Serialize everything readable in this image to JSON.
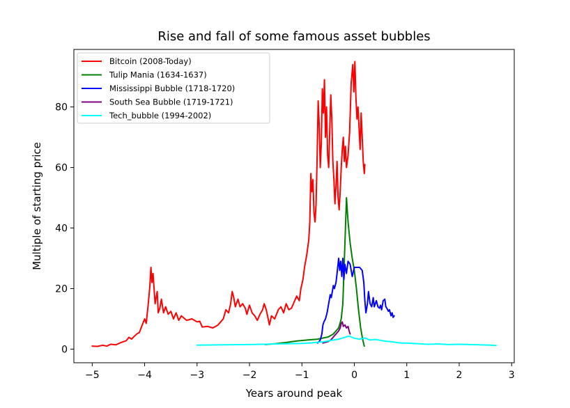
{
  "chart_data": {
    "type": "line",
    "title": "Rise and fall of some famous asset bubbles",
    "xlabel": "Years around peak",
    "ylabel": "Multiple of starting price",
    "xlim": [
      -5.35,
      3.05
    ],
    "ylim": [
      -4.5,
      99
    ],
    "xticks": [
      -5,
      -4,
      -3,
      -2,
      -1,
      0,
      1,
      2,
      3
    ],
    "xtick_labels": [
      "−5",
      "−4",
      "−3",
      "−2",
      "−1",
      "0",
      "1",
      "2",
      "3"
    ],
    "yticks": [
      0,
      20,
      40,
      60,
      80
    ],
    "ytick_labels": [
      "0",
      "20",
      "40",
      "60",
      "80"
    ],
    "grid": false,
    "legend_position": "top-left",
    "series": [
      {
        "name": "Bitcoin (2008-Today)",
        "color": "#ff0000",
        "points": [
          [
            -5.0,
            1.0
          ],
          [
            -4.9,
            0.9
          ],
          [
            -4.8,
            1.3
          ],
          [
            -4.72,
            1.0
          ],
          [
            -4.65,
            1.6
          ],
          [
            -4.55,
            1.4
          ],
          [
            -4.45,
            2.2
          ],
          [
            -4.35,
            2.8
          ],
          [
            -4.3,
            3.9
          ],
          [
            -4.25,
            3.3
          ],
          [
            -4.2,
            4.2
          ],
          [
            -4.15,
            5.0
          ],
          [
            -4.1,
            5.5
          ],
          [
            -4.05,
            7.8
          ],
          [
            -4.0,
            10.0
          ],
          [
            -3.97,
            8.5
          ],
          [
            -3.93,
            15.0
          ],
          [
            -3.9,
            21.0
          ],
          [
            -3.88,
            27.0
          ],
          [
            -3.86,
            22.0
          ],
          [
            -3.84,
            25.0
          ],
          [
            -3.8,
            15.0
          ],
          [
            -3.76,
            19.0
          ],
          [
            -3.74,
            12.0
          ],
          [
            -3.71,
            13.5
          ],
          [
            -3.68,
            16.5
          ],
          [
            -3.64,
            12.0
          ],
          [
            -3.6,
            14.0
          ],
          [
            -3.55,
            11.5
          ],
          [
            -3.5,
            12.5
          ],
          [
            -3.45,
            10.0
          ],
          [
            -3.4,
            12.0
          ],
          [
            -3.35,
            9.5
          ],
          [
            -3.3,
            11.0
          ],
          [
            -3.2,
            9.5
          ],
          [
            -3.1,
            10.0
          ],
          [
            -3.0,
            9.0
          ],
          [
            -2.95,
            9.2
          ],
          [
            -2.9,
            7.3
          ],
          [
            -2.8,
            7.5
          ],
          [
            -2.7,
            7.0
          ],
          [
            -2.6,
            8.0
          ],
          [
            -2.5,
            10.0
          ],
          [
            -2.45,
            13.0
          ],
          [
            -2.4,
            12.0
          ],
          [
            -2.36,
            15.0
          ],
          [
            -2.33,
            19.0
          ],
          [
            -2.3,
            17.0
          ],
          [
            -2.27,
            14.0
          ],
          [
            -2.22,
            16.5
          ],
          [
            -2.18,
            14.0
          ],
          [
            -2.13,
            15.0
          ],
          [
            -2.08,
            13.5
          ],
          [
            -2.05,
            11.5
          ],
          [
            -2.0,
            14.5
          ],
          [
            -1.95,
            12.0
          ],
          [
            -1.9,
            11.0
          ],
          [
            -1.85,
            9.5
          ],
          [
            -1.8,
            11.5
          ],
          [
            -1.75,
            13.0
          ],
          [
            -1.72,
            15.0
          ],
          [
            -1.68,
            13.0
          ],
          [
            -1.65,
            10.5
          ],
          [
            -1.62,
            8.0
          ],
          [
            -1.58,
            11.0
          ],
          [
            -1.52,
            10.0
          ],
          [
            -1.45,
            13.0
          ],
          [
            -1.4,
            14.0
          ],
          [
            -1.35,
            12.0
          ],
          [
            -1.3,
            15.0
          ],
          [
            -1.25,
            13.0
          ],
          [
            -1.2,
            13.5
          ],
          [
            -1.15,
            15.5
          ],
          [
            -1.1,
            17.5
          ],
          [
            -1.05,
            16.0
          ],
          [
            -1.02,
            20.0
          ],
          [
            -0.98,
            23.0
          ],
          [
            -0.95,
            27.0
          ],
          [
            -0.91,
            31.0
          ],
          [
            -0.87,
            36.0
          ],
          [
            -0.85,
            42.0
          ],
          [
            -0.83,
            58.0
          ],
          [
            -0.81,
            52.0
          ],
          [
            -0.79,
            56.0
          ],
          [
            -0.77,
            45.0
          ],
          [
            -0.75,
            42.0
          ],
          [
            -0.73,
            48.0
          ],
          [
            -0.71,
            63.0
          ],
          [
            -0.69,
            82.0
          ],
          [
            -0.67,
            74.0
          ],
          [
            -0.65,
            60.0
          ],
          [
            -0.63,
            68.0
          ],
          [
            -0.61,
            86.0
          ],
          [
            -0.59,
            78.0
          ],
          [
            -0.57,
            89.0
          ],
          [
            -0.55,
            70.0
          ],
          [
            -0.53,
            80.0
          ],
          [
            -0.51,
            64.0
          ],
          [
            -0.49,
            60.0
          ],
          [
            -0.47,
            72.0
          ],
          [
            -0.45,
            84.0
          ],
          [
            -0.43,
            76.0
          ],
          [
            -0.41,
            62.0
          ],
          [
            -0.39,
            56.0
          ],
          [
            -0.37,
            48.0
          ],
          [
            -0.35,
            54.0
          ],
          [
            -0.33,
            62.0
          ],
          [
            -0.31,
            50.0
          ],
          [
            -0.29,
            46.0
          ],
          [
            -0.27,
            52.0
          ],
          [
            -0.25,
            60.0
          ],
          [
            -0.23,
            66.0
          ],
          [
            -0.21,
            70.0
          ],
          [
            -0.19,
            62.0
          ],
          [
            -0.17,
            67.0
          ],
          [
            -0.15,
            60.0
          ],
          [
            -0.12,
            64.0
          ],
          [
            -0.09,
            72.0
          ],
          [
            -0.06,
            88.0
          ],
          [
            -0.03,
            94.0
          ],
          [
            -0.01,
            85.0
          ],
          [
            0.01,
            95.0
          ],
          [
            0.03,
            83.0
          ],
          [
            0.05,
            76.0
          ],
          [
            0.07,
            80.0
          ],
          [
            0.09,
            73.0
          ],
          [
            0.11,
            66.0
          ],
          [
            0.13,
            78.0
          ],
          [
            0.15,
            70.0
          ],
          [
            0.17,
            62.0
          ],
          [
            0.19,
            58.0
          ],
          [
            0.2,
            61.0
          ]
        ]
      },
      {
        "name": "Tulip Mania (1634-1637)",
        "color": "#008000",
        "points": [
          [
            -1.7,
            1.5
          ],
          [
            -1.5,
            1.8
          ],
          [
            -1.3,
            2.2
          ],
          [
            -1.1,
            2.7
          ],
          [
            -0.9,
            3.0
          ],
          [
            -0.7,
            3.3
          ],
          [
            -0.5,
            4.0
          ],
          [
            -0.4,
            5.0
          ],
          [
            -0.3,
            7.0
          ],
          [
            -0.25,
            10.0
          ],
          [
            -0.22,
            15.0
          ],
          [
            -0.2,
            25.0
          ],
          [
            -0.18,
            35.0
          ],
          [
            -0.16,
            45.0
          ],
          [
            -0.15,
            50.0
          ],
          [
            -0.12,
            42.0
          ],
          [
            -0.08,
            35.0
          ],
          [
            -0.04,
            30.0
          ],
          [
            0.0,
            26.0
          ],
          [
            0.04,
            20.0
          ],
          [
            0.08,
            13.0
          ],
          [
            0.12,
            7.0
          ],
          [
            0.16,
            3.0
          ],
          [
            0.19,
            1.0
          ]
        ]
      },
      {
        "name": "Mississippi Bubble (1718-1720)",
        "color": "#0000ff",
        "points": [
          [
            -0.7,
            2.0
          ],
          [
            -0.65,
            3.0
          ],
          [
            -0.62,
            5.0
          ],
          [
            -0.6,
            8.0
          ],
          [
            -0.58,
            9.0
          ],
          [
            -0.55,
            10.0
          ],
          [
            -0.52,
            12.0
          ],
          [
            -0.5,
            14.0
          ],
          [
            -0.48,
            16.0
          ],
          [
            -0.46,
            18.0
          ],
          [
            -0.44,
            17.0
          ],
          [
            -0.42,
            19.0
          ],
          [
            -0.4,
            21.0
          ],
          [
            -0.38,
            20.0
          ],
          [
            -0.35,
            22.0
          ],
          [
            -0.33,
            25.0
          ],
          [
            -0.3,
            30.0
          ],
          [
            -0.28,
            26.0
          ],
          [
            -0.26,
            29.0
          ],
          [
            -0.24,
            24.0
          ],
          [
            -0.22,
            30.0
          ],
          [
            -0.2,
            23.0
          ],
          [
            -0.18,
            28.0
          ],
          [
            -0.15,
            25.0
          ],
          [
            -0.12,
            29.0
          ],
          [
            -0.08,
            28.0
          ],
          [
            -0.04,
            24.0
          ],
          [
            0.0,
            27.0
          ],
          [
            0.05,
            27.0
          ],
          [
            0.1,
            27.0
          ],
          [
            0.15,
            26.0
          ],
          [
            0.18,
            22.0
          ],
          [
            0.2,
            16.0
          ],
          [
            0.22,
            12.0
          ],
          [
            0.25,
            15.0
          ],
          [
            0.27,
            19.0
          ],
          [
            0.3,
            15.0
          ],
          [
            0.33,
            14.0
          ],
          [
            0.36,
            17.0
          ],
          [
            0.38,
            14.0
          ],
          [
            0.4,
            15.0
          ],
          [
            0.42,
            16.0
          ],
          [
            0.45,
            14.0
          ],
          [
            0.48,
            13.5
          ],
          [
            0.5,
            14.5
          ],
          [
            0.52,
            13.0
          ],
          [
            0.55,
            16.0
          ],
          [
            0.58,
            16.5
          ],
          [
            0.6,
            14.0
          ],
          [
            0.62,
            13.5
          ],
          [
            0.65,
            12.5
          ],
          [
            0.67,
            13.0
          ],
          [
            0.7,
            11.0
          ],
          [
            0.72,
            12.0
          ],
          [
            0.74,
            10.5
          ],
          [
            0.76,
            11.0
          ]
        ]
      },
      {
        "name": "South Sea Bubble (1719-1721)",
        "color": "#800080",
        "points": [
          [
            -0.6,
            2.0
          ],
          [
            -0.5,
            2.5
          ],
          [
            -0.45,
            3.0
          ],
          [
            -0.4,
            4.0
          ],
          [
            -0.35,
            5.0
          ],
          [
            -0.3,
            6.0
          ],
          [
            -0.27,
            7.0
          ],
          [
            -0.25,
            8.5
          ],
          [
            -0.23,
            9.0
          ],
          [
            -0.21,
            7.5
          ],
          [
            -0.18,
            8.0
          ],
          [
            -0.15,
            7.0
          ],
          [
            -0.12,
            7.5
          ],
          [
            -0.1,
            6.0
          ],
          [
            -0.08,
            5.0
          ]
        ]
      },
      {
        "name": "Tech_bubble (1994-2002)",
        "color": "#00ffff",
        "points": [
          [
            -3.0,
            1.3
          ],
          [
            -2.5,
            1.4
          ],
          [
            -2.0,
            1.5
          ],
          [
            -1.5,
            1.7
          ],
          [
            -1.0,
            1.9
          ],
          [
            -0.8,
            2.1
          ],
          [
            -0.6,
            2.4
          ],
          [
            -0.4,
            3.0
          ],
          [
            -0.3,
            3.3
          ],
          [
            -0.2,
            3.8
          ],
          [
            -0.1,
            4.3
          ],
          [
            0.0,
            3.6
          ],
          [
            0.1,
            3.3
          ],
          [
            0.2,
            3.7
          ],
          [
            0.3,
            3.0
          ],
          [
            0.4,
            3.2
          ],
          [
            0.5,
            2.9
          ],
          [
            0.6,
            2.6
          ],
          [
            0.7,
            2.5
          ],
          [
            0.8,
            2.2
          ],
          [
            0.9,
            2.0
          ],
          [
            1.0,
            2.0
          ],
          [
            1.2,
            1.8
          ],
          [
            1.4,
            1.6
          ],
          [
            1.6,
            1.7
          ],
          [
            1.8,
            1.5
          ],
          [
            2.0,
            1.6
          ],
          [
            2.2,
            1.5
          ],
          [
            2.4,
            1.4
          ],
          [
            2.6,
            1.3
          ],
          [
            2.7,
            1.2
          ]
        ]
      }
    ]
  }
}
